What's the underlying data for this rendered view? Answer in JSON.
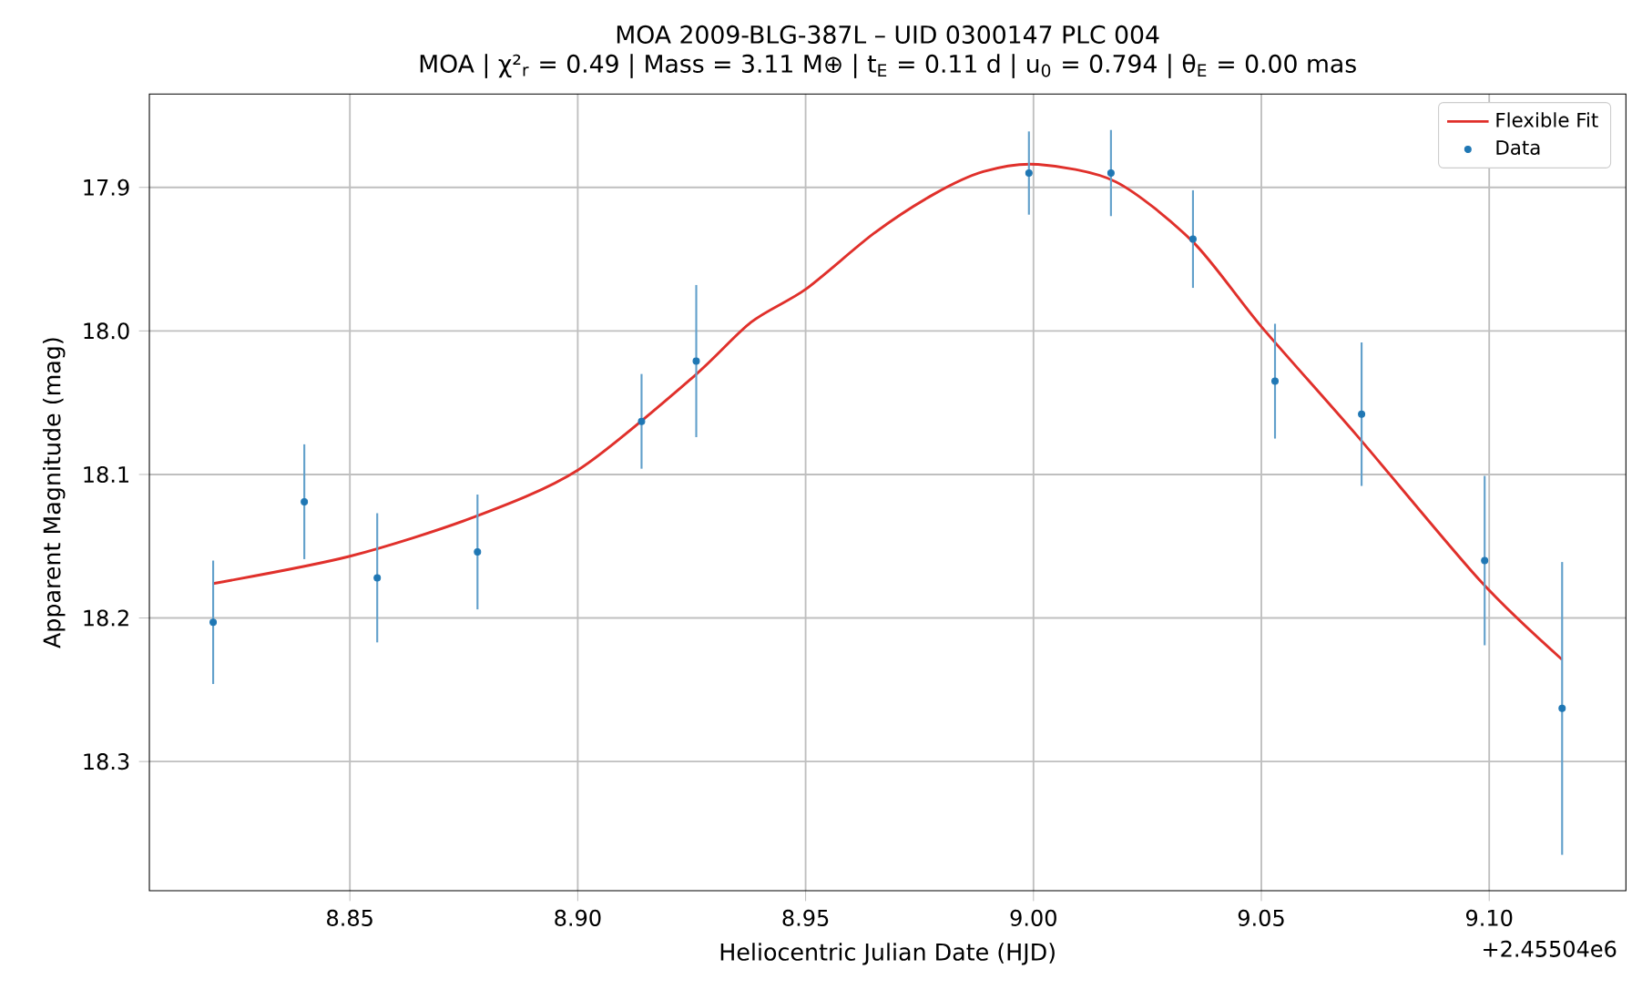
{
  "chart_data": {
    "type": "scatter",
    "title": "MOA 2009-BLG-387L – UID 0300147 PLC 004",
    "subtitle": "MOA | χ²$_{r}$ = 0.49 | Mass = 3.11 M⊕ | t$_{E}$ = 0.11 d | u$_{0}$ = 0.794 | θ$_{E}$ = 0.00 mas",
    "xlabel": "Heliocentric Julian Date (HJD)",
    "ylabel": "Apparent Magnitude (mag)",
    "annotations": [
      "+2.45504e6"
    ],
    "xlim": [
      8.806,
      9.13
    ],
    "ylim": [
      18.39,
      17.835
    ],
    "xticks": [
      {
        "value": 8.85,
        "label": "8.85"
      },
      {
        "value": 8.9,
        "label": "8.90"
      },
      {
        "value": 8.95,
        "label": "8.95"
      },
      {
        "value": 9.0,
        "label": "9.00"
      },
      {
        "value": 9.05,
        "label": "9.05"
      },
      {
        "value": 9.1,
        "label": "9.10"
      }
    ],
    "yticks": [
      {
        "value": 17.9,
        "label": "17.9"
      },
      {
        "value": 18.0,
        "label": "18.0"
      },
      {
        "value": 18.1,
        "label": "18.1"
      },
      {
        "value": 18.2,
        "label": "18.2"
      },
      {
        "value": 18.3,
        "label": "18.3"
      }
    ],
    "grid": true,
    "legend": "top right",
    "series": [
      {
        "name": "Flexible Fit",
        "type": "line",
        "color": "#e0302b",
        "marker": "none",
        "x": [
          8.82,
          8.85,
          8.877,
          8.9,
          8.925,
          8.938,
          8.95,
          8.965,
          8.978,
          8.989,
          9.001,
          9.018,
          9.035,
          9.05,
          9.071,
          9.098,
          9.116
        ],
        "values": [
          18.176,
          18.157,
          18.13,
          18.097,
          18.033,
          17.994,
          17.971,
          17.932,
          17.905,
          17.889,
          17.884,
          17.896,
          17.938,
          17.997,
          18.073,
          18.174,
          18.229
        ]
      },
      {
        "name": "Data",
        "color": "#1f77b4",
        "marker": "circle",
        "x": [
          8.82,
          8.84,
          8.856,
          8.878,
          8.914,
          8.926,
          8.999,
          9.017,
          9.035,
          9.053,
          9.072,
          9.099,
          9.116
        ],
        "values": [
          18.203,
          18.119,
          18.172,
          18.154,
          18.063,
          18.021,
          17.89,
          17.89,
          17.936,
          18.035,
          18.058,
          18.16,
          18.263
        ],
        "errors": [
          0.043,
          0.04,
          0.045,
          0.04,
          0.033,
          0.053,
          0.029,
          0.03,
          0.034,
          0.04,
          0.05,
          0.059,
          0.102
        ]
      }
    ]
  }
}
